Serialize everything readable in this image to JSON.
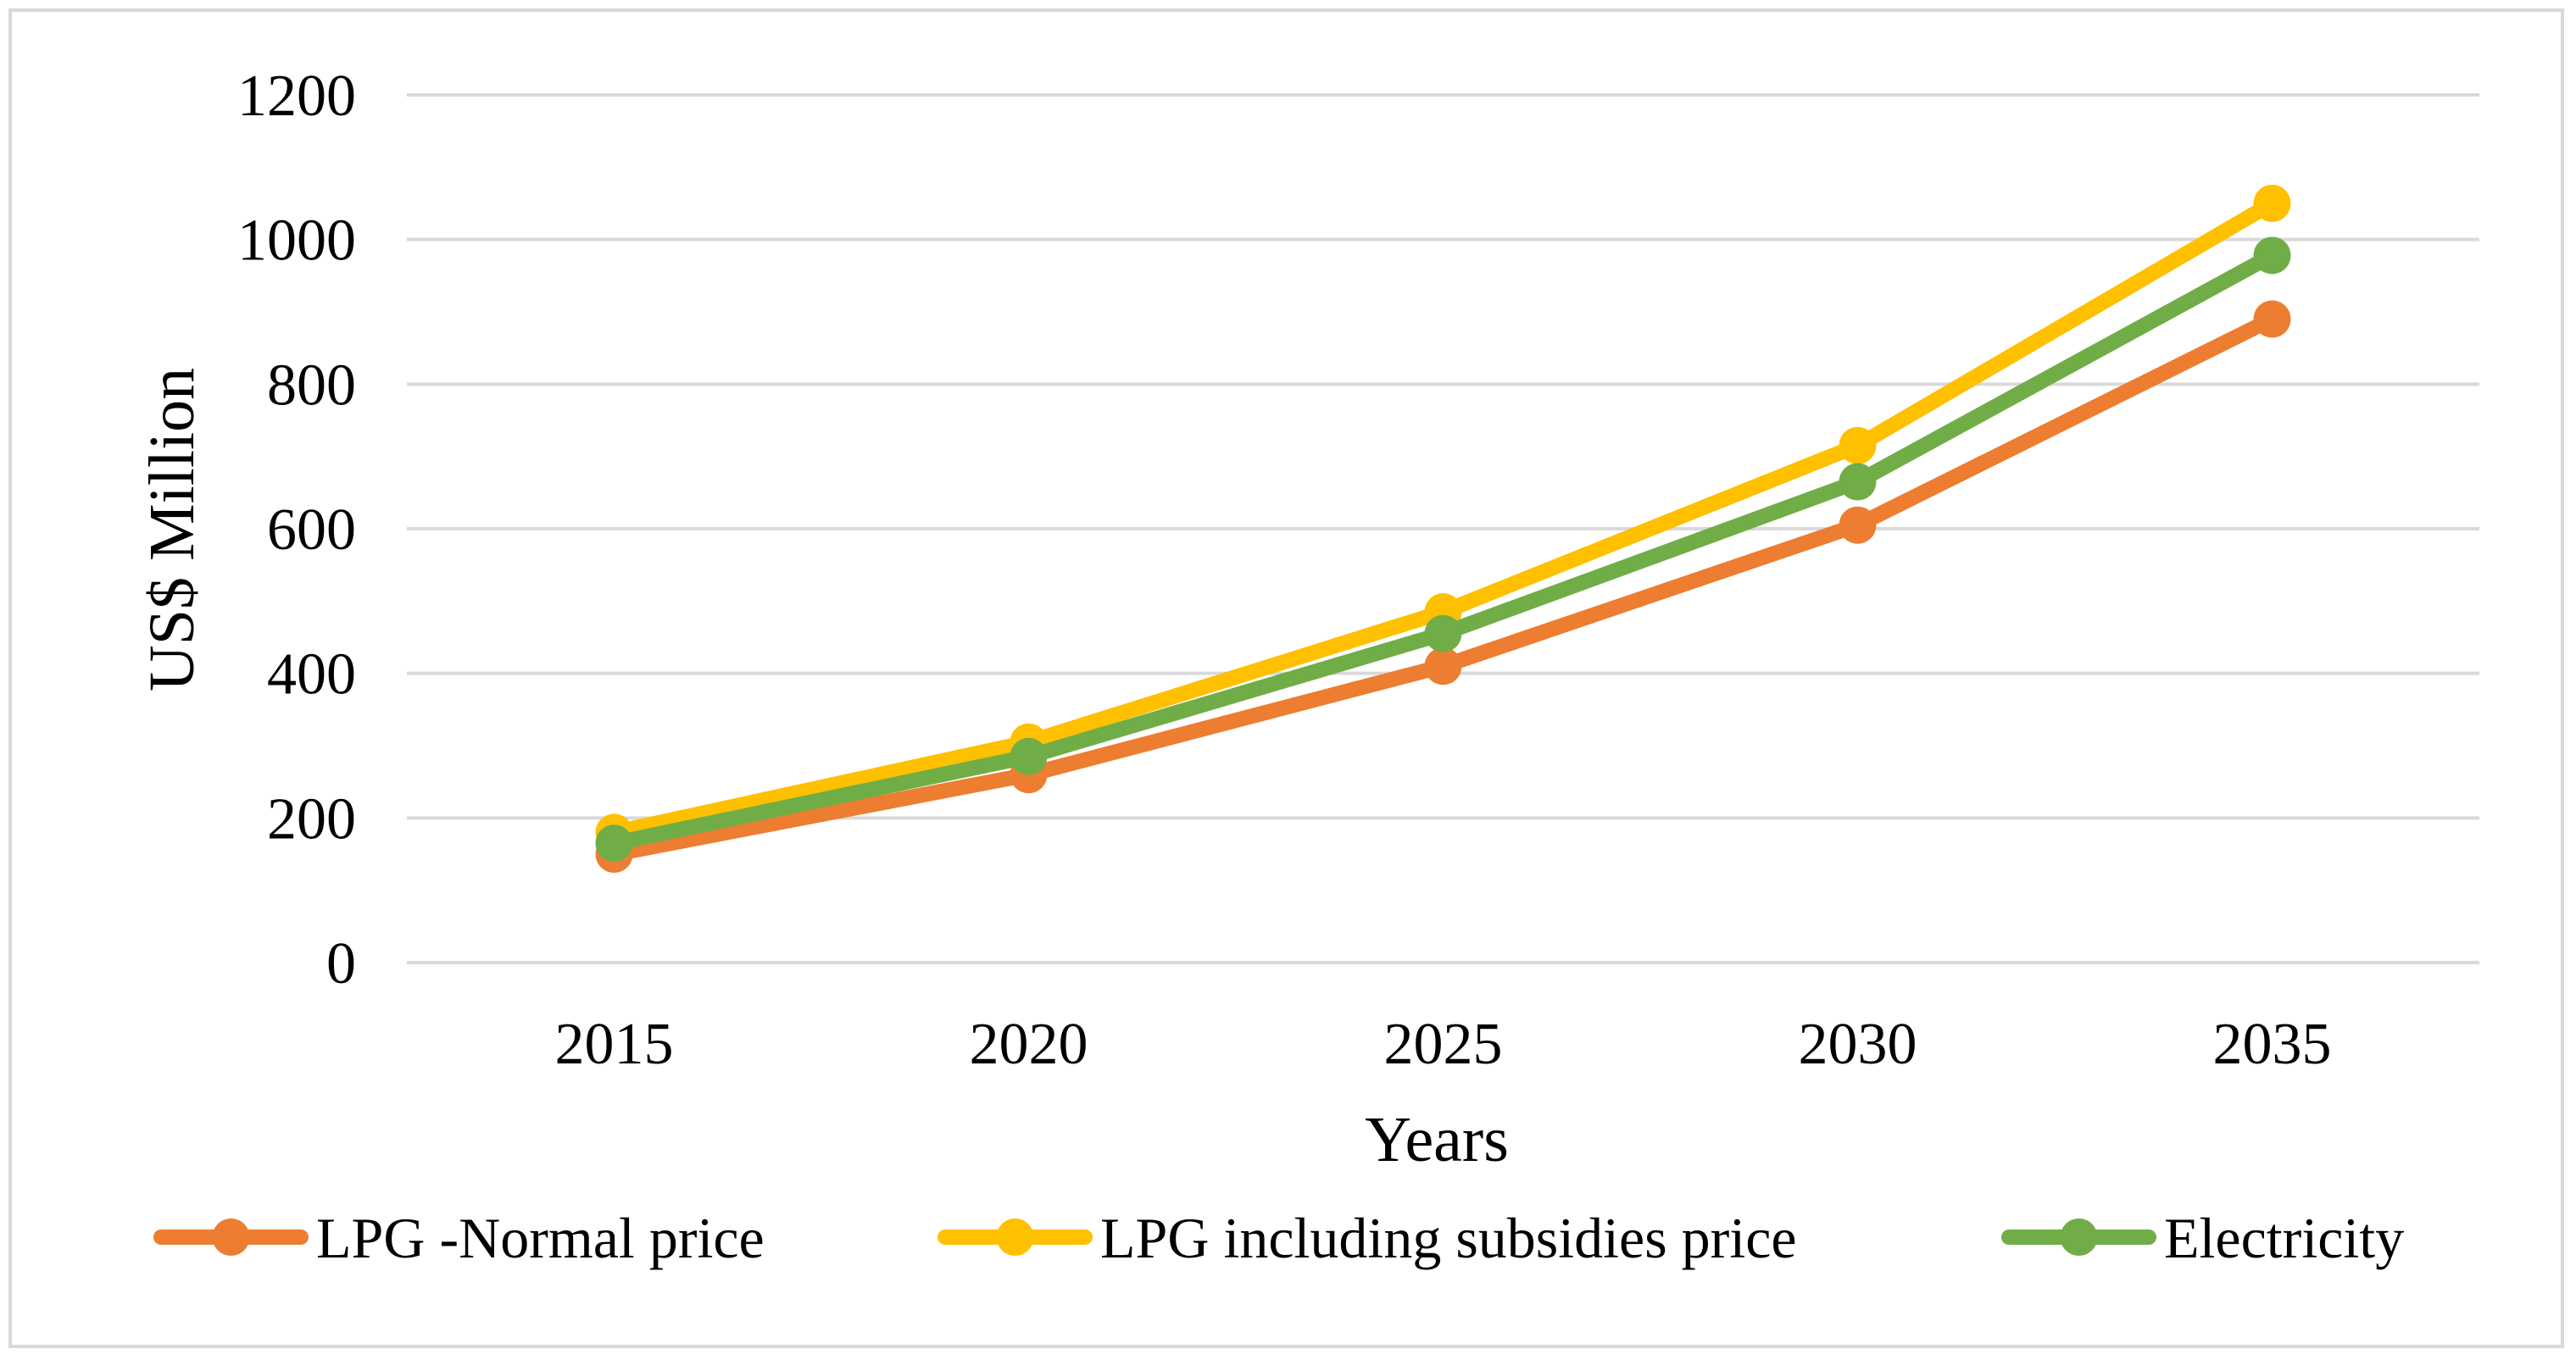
{
  "chart_data": {
    "type": "line",
    "title": "",
    "xlabel": "Years",
    "ylabel": "US$ Million",
    "categories": [
      "2015",
      "2020",
      "2025",
      "2030",
      "2035"
    ],
    "ylim": [
      0,
      1200
    ],
    "yticks": [
      "0",
      "200",
      "400",
      "600",
      "800",
      "1000",
      "1200"
    ],
    "grid": true,
    "legend_position": "bottom",
    "series": [
      {
        "name": "LPG -Normal price",
        "color": "#ED7D31",
        "values": [
          150,
          260,
          410,
          605,
          890
        ]
      },
      {
        "name": "LPG including subsidies price",
        "color": "#FFC000",
        "values": [
          180,
          305,
          485,
          715,
          1050
        ]
      },
      {
        "name": "Electricity",
        "color": "#70AD47",
        "values": [
          165,
          285,
          455,
          665,
          978
        ]
      }
    ]
  }
}
